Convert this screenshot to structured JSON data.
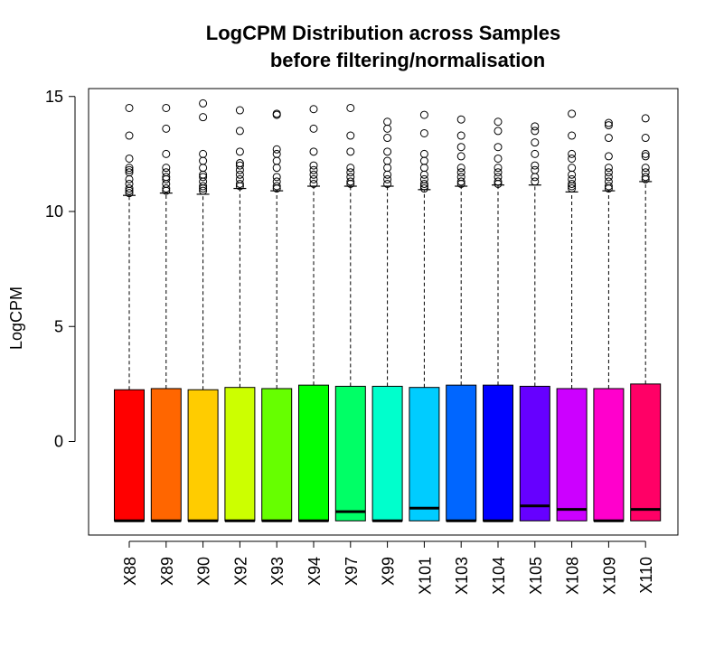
{
  "chart_data": {
    "type": "boxplot",
    "title": "LogCPM Distribution across Samples",
    "subtitle": "before filtering/normalisation",
    "ylabel": "LogCPM",
    "xlabel": "",
    "ylim": [
      -4.0,
      15.3
    ],
    "yticks": [
      0,
      5,
      10,
      15
    ],
    "ytick_labels": [
      "0",
      "5",
      "10",
      "15"
    ],
    "grid": false,
    "categories": [
      "X88",
      "X89",
      "X90",
      "X92",
      "X93",
      "X94",
      "X97",
      "X99",
      "X101",
      "X103",
      "X104",
      "X105",
      "X108",
      "X109",
      "X110"
    ],
    "colors": [
      "#FF0000",
      "#FF6600",
      "#FFCC00",
      "#CCFF00",
      "#66FF00",
      "#00FF00",
      "#00FF66",
      "#00FFCC",
      "#00CCFF",
      "#0066FF",
      "#0000FF",
      "#6600FF",
      "#CC00FF",
      "#FF00CC",
      "#FF0066"
    ],
    "boxes": [
      {
        "q1": -3.45,
        "median": -3.45,
        "q3": 2.25,
        "whisker_low": -3.45,
        "whisker_high": 10.7,
        "outliers": [
          14.5,
          13.3,
          12.3,
          11.9,
          11.8,
          11.7,
          11.4,
          11.2,
          11.0,
          10.9,
          10.8
        ]
      },
      {
        "q1": -3.45,
        "median": -3.45,
        "q3": 2.3,
        "whisker_low": -3.45,
        "whisker_high": 10.8,
        "outliers": [
          14.5,
          13.6,
          12.5,
          11.9,
          11.7,
          11.5,
          11.4,
          11.2,
          11.0,
          10.9
        ]
      },
      {
        "q1": -3.45,
        "median": -3.45,
        "q3": 2.25,
        "whisker_low": -3.45,
        "whisker_high": 10.75,
        "outliers": [
          14.7,
          14.1,
          12.5,
          12.2,
          11.9,
          11.6,
          11.5,
          11.3,
          11.1,
          11.0,
          10.9
        ]
      },
      {
        "q1": -3.45,
        "median": -3.45,
        "q3": 2.35,
        "whisker_low": -3.45,
        "whisker_high": 11.0,
        "outliers": [
          14.4,
          13.5,
          12.6,
          12.1,
          12.0,
          11.8,
          11.6,
          11.4,
          11.2,
          11.1
        ]
      },
      {
        "q1": -3.45,
        "median": -3.45,
        "q3": 2.3,
        "whisker_low": -3.45,
        "whisker_high": 10.9,
        "outliers": [
          14.25,
          14.2,
          12.7,
          12.5,
          12.2,
          11.9,
          11.5,
          11.3,
          11.1,
          11.0
        ]
      },
      {
        "q1": -3.45,
        "median": -3.45,
        "q3": 2.45,
        "whisker_low": -3.45,
        "whisker_high": 11.1,
        "outliers": [
          14.45,
          13.6,
          12.6,
          12.0,
          11.8,
          11.6,
          11.4,
          11.2
        ]
      },
      {
        "q1": -3.45,
        "median": -3.05,
        "q3": 2.4,
        "whisker_low": -3.45,
        "whisker_high": 11.1,
        "outliers": [
          14.5,
          13.3,
          12.6,
          11.9,
          11.7,
          11.5,
          11.3,
          11.2
        ]
      },
      {
        "q1": -3.45,
        "median": -3.45,
        "q3": 2.4,
        "whisker_low": -3.45,
        "whisker_high": 11.1,
        "outliers": [
          13.9,
          13.6,
          13.2,
          12.6,
          12.2,
          11.9,
          11.6,
          11.4,
          11.2
        ]
      },
      {
        "q1": -3.45,
        "median": -2.9,
        "q3": 2.35,
        "whisker_low": -3.45,
        "whisker_high": 10.95,
        "outliers": [
          14.2,
          13.4,
          12.5,
          12.2,
          11.9,
          11.6,
          11.4,
          11.2,
          11.1,
          11.0
        ]
      },
      {
        "q1": -3.45,
        "median": -3.45,
        "q3": 2.45,
        "whisker_low": -3.45,
        "whisker_high": 11.1,
        "outliers": [
          14.0,
          13.3,
          12.8,
          12.4,
          11.9,
          11.7,
          11.5,
          11.3,
          11.2
        ]
      },
      {
        "q1": -3.45,
        "median": -3.45,
        "q3": 2.45,
        "whisker_low": -3.45,
        "whisker_high": 11.15,
        "outliers": [
          13.9,
          13.5,
          12.8,
          12.3,
          11.9,
          11.7,
          11.5,
          11.3,
          11.2
        ]
      },
      {
        "q1": -3.45,
        "median": -2.8,
        "q3": 2.4,
        "whisker_low": -3.45,
        "whisker_high": 11.15,
        "outliers": [
          13.7,
          13.5,
          13.0,
          12.5,
          12.0,
          11.8,
          11.5,
          11.3
        ]
      },
      {
        "q1": -3.45,
        "median": -2.95,
        "q3": 2.3,
        "whisker_low": -3.45,
        "whisker_high": 10.85,
        "outliers": [
          14.25,
          13.3,
          12.5,
          12.3,
          11.9,
          11.6,
          11.4,
          11.2,
          11.1,
          11.0
        ]
      },
      {
        "q1": -3.45,
        "median": -3.45,
        "q3": 2.3,
        "whisker_low": -3.45,
        "whisker_high": 10.9,
        "outliers": [
          13.85,
          13.75,
          13.2,
          12.4,
          11.9,
          11.7,
          11.5,
          11.3,
          11.1,
          11.0
        ]
      },
      {
        "q1": -3.45,
        "median": -2.95,
        "q3": 2.5,
        "whisker_low": -3.45,
        "whisker_high": 11.3,
        "outliers": [
          14.05,
          13.2,
          12.5,
          12.4,
          11.9,
          11.7,
          11.5,
          11.4
        ]
      }
    ]
  }
}
